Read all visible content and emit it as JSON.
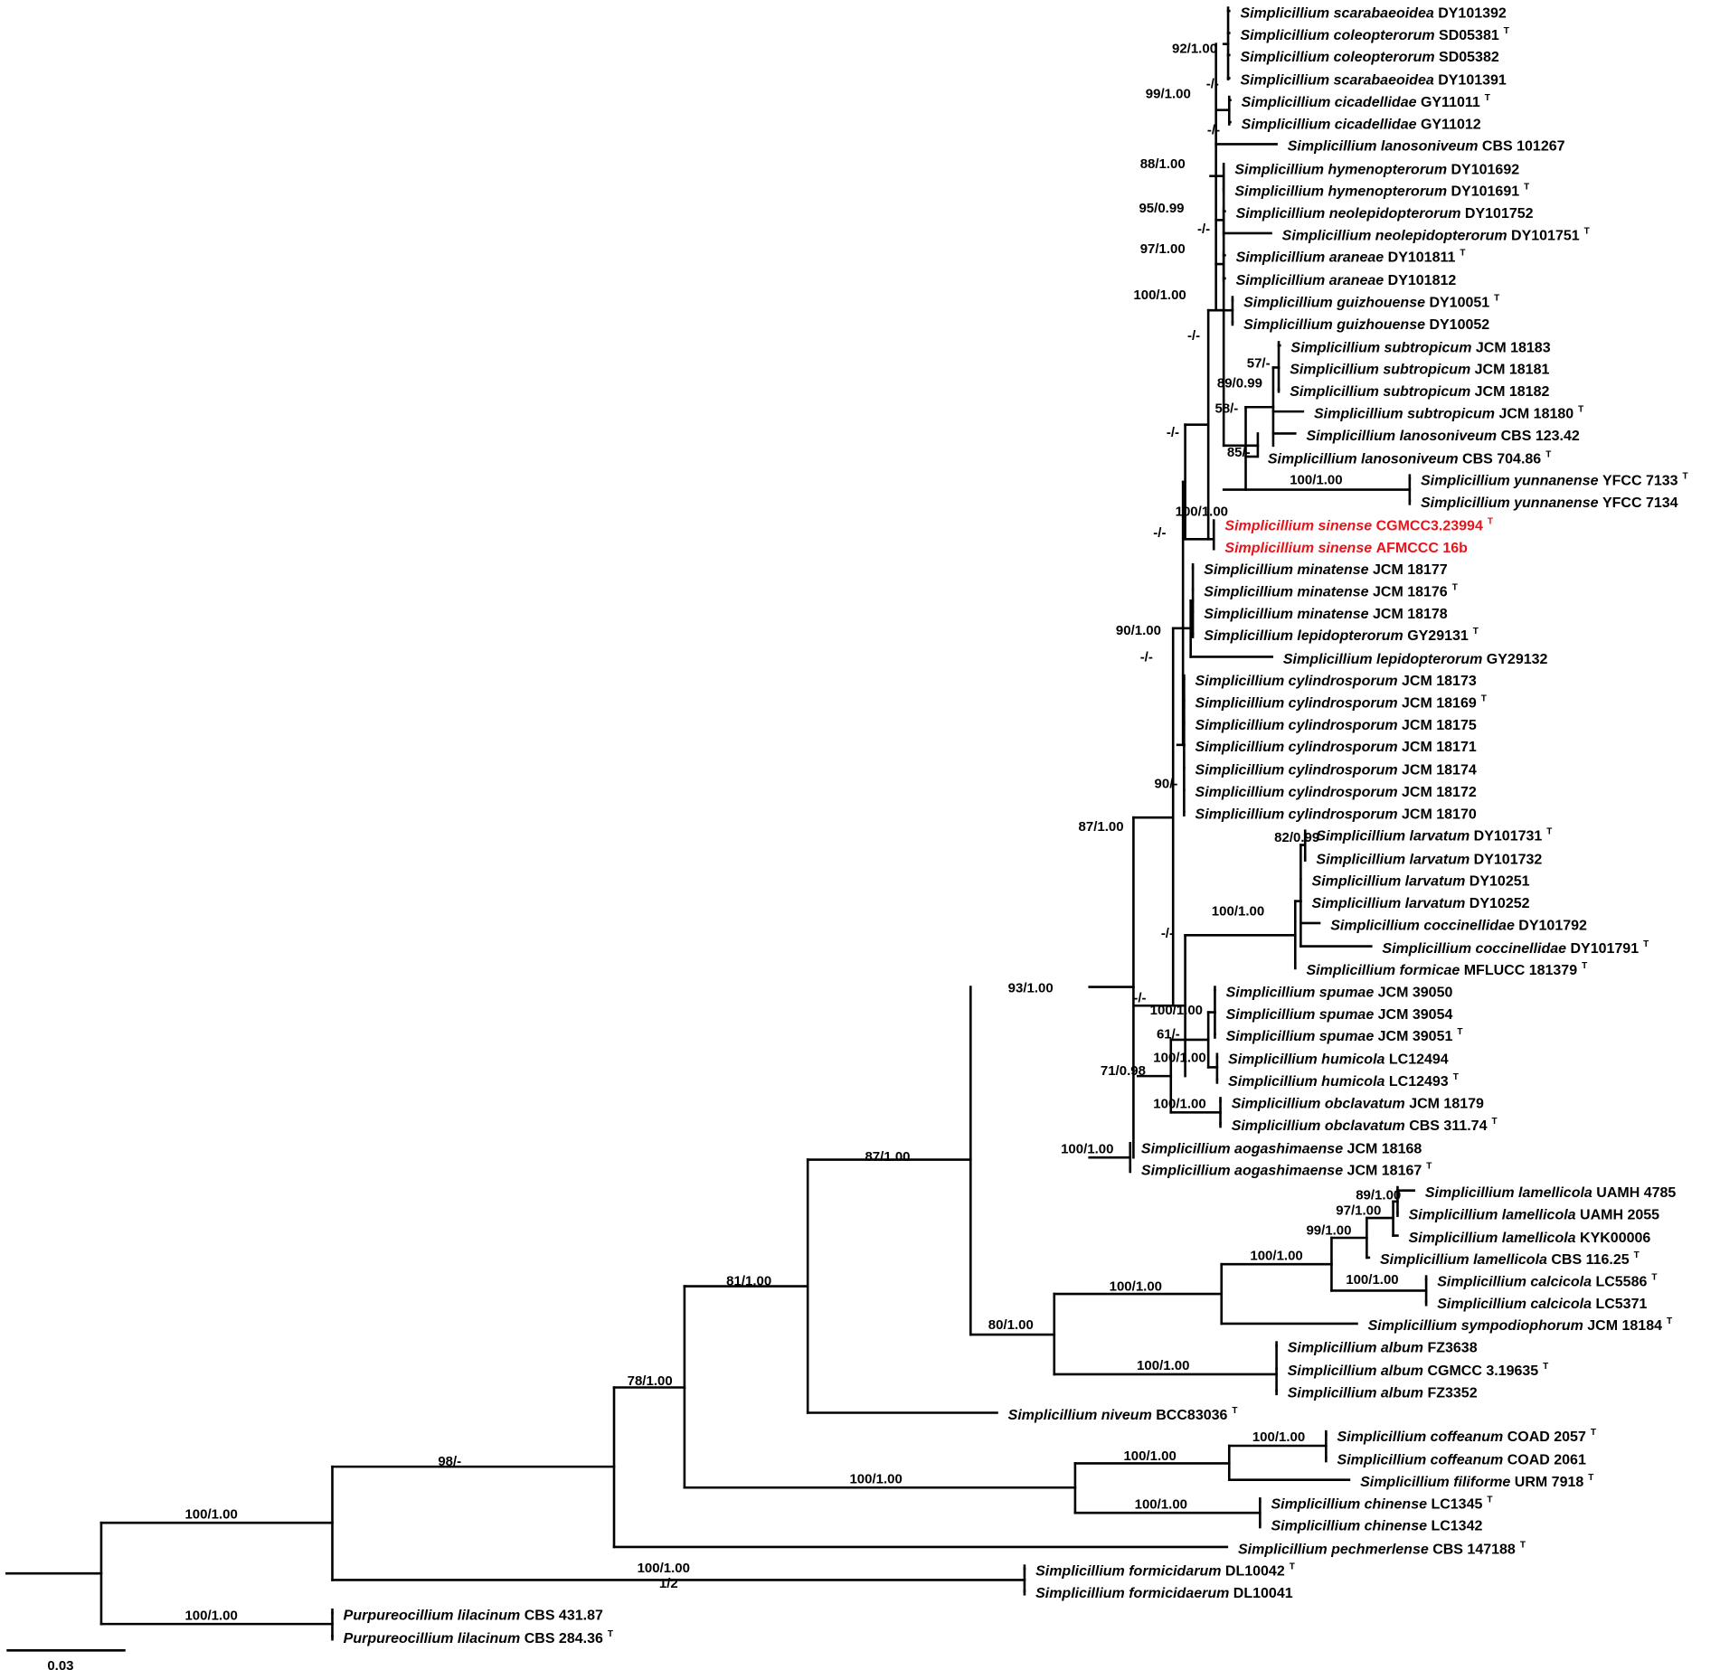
{
  "colors": {
    "branch": "#000000",
    "label": "#000000",
    "highlight": "#e8141c"
  },
  "scale_bar": {
    "label": "0.03"
  },
  "taxa": [
    {
      "id": "t0",
      "genus": "Simplicillium scarabaeoidea",
      "strain": "DY101392",
      "type": false,
      "highlight": false
    },
    {
      "id": "t1",
      "genus": "Simplicillium coleopterorum",
      "strain": "SD05381",
      "type": true,
      "highlight": false
    },
    {
      "id": "t2",
      "genus": "Simplicillium coleopterorum",
      "strain": "SD05382",
      "type": false,
      "highlight": false
    },
    {
      "id": "t3",
      "genus": "Simplicillium scarabaeoidea",
      "strain": "DY101391",
      "type": false,
      "highlight": false
    },
    {
      "id": "t4",
      "genus": "Simplicillium cicadellidae",
      "strain": "GY11011",
      "type": true,
      "highlight": false
    },
    {
      "id": "t5",
      "genus": "Simplicillium cicadellidae",
      "strain": "GY11012",
      "type": false,
      "highlight": false
    },
    {
      "id": "t6",
      "genus": "Simplicillium lanosoniveum",
      "strain": "CBS 101267",
      "type": false,
      "highlight": false
    },
    {
      "id": "t7",
      "genus": "Simplicillium hymenopterorum",
      "strain": "DY101692",
      "type": false,
      "highlight": false
    },
    {
      "id": "t8",
      "genus": "Simplicillium hymenopterorum",
      "strain": "DY101691",
      "type": true,
      "highlight": false
    },
    {
      "id": "t9",
      "genus": "Simplicillium neolepidopterorum",
      "strain": "DY101752",
      "type": false,
      "highlight": false
    },
    {
      "id": "t10",
      "genus": "Simplicillium neolepidopterorum",
      "strain": "DY101751",
      "type": true,
      "highlight": false
    },
    {
      "id": "t11",
      "genus": "Simplicillium araneae",
      "strain": "DY101811",
      "type": true,
      "highlight": false
    },
    {
      "id": "t12",
      "genus": "Simplicillium araneae",
      "strain": "DY101812",
      "type": false,
      "highlight": false
    },
    {
      "id": "t13",
      "genus": "Simplicillium guizhouense",
      "strain": "DY10051",
      "type": true,
      "highlight": false
    },
    {
      "id": "t14",
      "genus": "Simplicillium guizhouense",
      "strain": "DY10052",
      "type": false,
      "highlight": false
    },
    {
      "id": "t15",
      "genus": "Simplicillium subtropicum",
      "strain": "JCM 18183",
      "type": false,
      "highlight": false
    },
    {
      "id": "t16",
      "genus": "Simplicillium subtropicum",
      "strain": "JCM 18181",
      "type": false,
      "highlight": false
    },
    {
      "id": "t17",
      "genus": "Simplicillium subtropicum",
      "strain": "JCM 18182",
      "type": false,
      "highlight": false
    },
    {
      "id": "t18",
      "genus": "Simplicillium subtropicum",
      "strain": "JCM 18180",
      "type": true,
      "highlight": false
    },
    {
      "id": "t19",
      "genus": "Simplicillium lanosoniveum",
      "strain": "CBS 123.42",
      "type": false,
      "highlight": false
    },
    {
      "id": "t20",
      "genus": "Simplicillium lanosoniveum",
      "strain": "CBS 704.86",
      "type": true,
      "highlight": false
    },
    {
      "id": "t21",
      "genus": "Simplicillium yunnanense",
      "strain": "YFCC 7133",
      "type": true,
      "highlight": false
    },
    {
      "id": "t22",
      "genus": "Simplicillium yunnanense",
      "strain": "YFCC 7134",
      "type": false,
      "highlight": false
    },
    {
      "id": "t23",
      "genus": "Simplicillium sinense",
      "strain": "CGMCC3.23994",
      "type": true,
      "highlight": true
    },
    {
      "id": "t24",
      "genus": "Simplicillium sinense",
      "strain": "AFMCCC 16b",
      "type": false,
      "highlight": true
    },
    {
      "id": "t25",
      "genus": "Simplicillium minatense",
      "strain": "JCM 18177",
      "type": false,
      "highlight": false
    },
    {
      "id": "t26",
      "genus": "Simplicillium minatense",
      "strain": "JCM 18176",
      "type": true,
      "highlight": false
    },
    {
      "id": "t27",
      "genus": "Simplicillium minatense",
      "strain": "JCM 18178",
      "type": false,
      "highlight": false
    },
    {
      "id": "t28",
      "genus": "Simplicillium lepidopterorum",
      "strain": "GY29131",
      "type": true,
      "highlight": false
    },
    {
      "id": "t29",
      "genus": "Simplicillium lepidopterorum",
      "strain": "GY29132",
      "type": false,
      "highlight": false
    },
    {
      "id": "t30",
      "genus": "Simplicillium cylindrosporum",
      "strain": "JCM 18173",
      "type": false,
      "highlight": false
    },
    {
      "id": "t31",
      "genus": "Simplicillium cylindrosporum",
      "strain": "JCM 18169",
      "type": true,
      "highlight": false
    },
    {
      "id": "t32",
      "genus": "Simplicillium cylindrosporum",
      "strain": "JCM 18175",
      "type": false,
      "highlight": false
    },
    {
      "id": "t33",
      "genus": "Simplicillium cylindrosporum",
      "strain": "JCM 18171",
      "type": false,
      "highlight": false
    },
    {
      "id": "t34",
      "genus": "Simplicillium cylindrosporum",
      "strain": "JCM 18174",
      "type": false,
      "highlight": false
    },
    {
      "id": "t35",
      "genus": "Simplicillium cylindrosporum",
      "strain": "JCM 18172",
      "type": false,
      "highlight": false
    },
    {
      "id": "t36",
      "genus": "Simplicillium cylindrosporum",
      "strain": "JCM 18170",
      "type": false,
      "highlight": false
    },
    {
      "id": "t37",
      "genus": "Simplicillium larvatum",
      "strain": "DY101731",
      "type": true,
      "highlight": false
    },
    {
      "id": "t38",
      "genus": "Simplicillium larvatum",
      "strain": "DY101732",
      "type": false,
      "highlight": false
    },
    {
      "id": "t39",
      "genus": "Simplicillium larvatum",
      "strain": "DY10251",
      "type": false,
      "highlight": false
    },
    {
      "id": "t40",
      "genus": "Simplicillium larvatum",
      "strain": "DY10252",
      "type": false,
      "highlight": false
    },
    {
      "id": "t41",
      "genus": "Simplicillium coccinellidae",
      "strain": "DY101792",
      "type": false,
      "highlight": false
    },
    {
      "id": "t42",
      "genus": "Simplicillium coccinellidae",
      "strain": "DY101791",
      "type": true,
      "highlight": false
    },
    {
      "id": "t43",
      "genus": "Simplicillium formicae",
      "strain": "MFLUCC 181379",
      "type": true,
      "highlight": false
    },
    {
      "id": "t44",
      "genus": "Simplicillium spumae",
      "strain": "JCM 39050",
      "type": false,
      "highlight": false
    },
    {
      "id": "t45",
      "genus": "Simplicillium spumae",
      "strain": "JCM 39054",
      "type": false,
      "highlight": false
    },
    {
      "id": "t46",
      "genus": "Simplicillium spumae",
      "strain": "JCM 39051",
      "type": true,
      "highlight": false
    },
    {
      "id": "t47",
      "genus": "Simplicillium humicola",
      "strain": "LC12494",
      "type": false,
      "highlight": false
    },
    {
      "id": "t48",
      "genus": "Simplicillium humicola",
      "strain": "LC12493",
      "type": true,
      "highlight": false
    },
    {
      "id": "t49",
      "genus": "Simplicillium obclavatum",
      "strain": "JCM 18179",
      "type": false,
      "highlight": false
    },
    {
      "id": "t50",
      "genus": "Simplicillium obclavatum",
      "strain": "CBS 311.74",
      "type": true,
      "highlight": false
    },
    {
      "id": "t51",
      "genus": "Simplicillium aogashimaense",
      "strain": "JCM 18168",
      "type": false,
      "highlight": false
    },
    {
      "id": "t52",
      "genus": "Simplicillium aogashimaense",
      "strain": "JCM 18167",
      "type": true,
      "highlight": false
    },
    {
      "id": "t53",
      "genus": "Simplicillium lamellicola",
      "strain": "UAMH 4785",
      "type": false,
      "highlight": false
    },
    {
      "id": "t54",
      "genus": "Simplicillium lamellicola",
      "strain": "UAMH 2055",
      "type": false,
      "highlight": false
    },
    {
      "id": "t55",
      "genus": "Simplicillium lamellicola",
      "strain": "KYK00006",
      "type": false,
      "highlight": false
    },
    {
      "id": "t56",
      "genus": "Simplicillium lamellicola",
      "strain": "CBS 116.25",
      "type": true,
      "highlight": false
    },
    {
      "id": "t57",
      "genus": "Simplicillium calcicola",
      "strain": "LC5586",
      "type": true,
      "highlight": false
    },
    {
      "id": "t58",
      "genus": "Simplicillium calcicola",
      "strain": "LC5371",
      "type": false,
      "highlight": false
    },
    {
      "id": "t59",
      "genus": "Simplicillium sympodiophorum",
      "strain": "JCM 18184",
      "type": true,
      "highlight": false
    },
    {
      "id": "t60",
      "genus": "Simplicillium album",
      "strain": "FZ3638",
      "type": false,
      "highlight": false
    },
    {
      "id": "t61",
      "genus": "Simplicillium album",
      "strain": "CGMCC 3.19635",
      "type": true,
      "highlight": false
    },
    {
      "id": "t62",
      "genus": "Simplicillium album",
      "strain": "FZ3352",
      "type": false,
      "highlight": false
    },
    {
      "id": "t63",
      "genus": "Simplicillium niveum",
      "strain": "BCC83036",
      "type": true,
      "highlight": false
    },
    {
      "id": "t64",
      "genus": "Simplicillium coffeanum",
      "strain": "COAD 2057",
      "type": true,
      "highlight": false
    },
    {
      "id": "t65",
      "genus": "Simplicillium coffeanum",
      "strain": "COAD 2061",
      "type": false,
      "highlight": false
    },
    {
      "id": "t66",
      "genus": "Simplicillium filiforme",
      "strain": "URM 7918",
      "type": true,
      "highlight": false
    },
    {
      "id": "t67",
      "genus": "Simplicillium chinense",
      "strain": "LC1345",
      "type": true,
      "highlight": false
    },
    {
      "id": "t68",
      "genus": "Simplicillium chinense",
      "strain": "LC1342",
      "type": false,
      "highlight": false
    },
    {
      "id": "t69",
      "genus": "Simplicillium pechmerlense",
      "strain": "CBS 147188",
      "type": true,
      "highlight": false
    },
    {
      "id": "t70",
      "genus": "Simplicillium formicidarum",
      "strain": "DL10042",
      "type": true,
      "highlight": false
    },
    {
      "id": "t71",
      "genus": "Simplicillium formicidaerum",
      "strain": "DL10041",
      "type": false,
      "highlight": false
    },
    {
      "id": "t72",
      "genus": "Purpureocillium lilacinum",
      "strain": "CBS 431.87",
      "type": false,
      "highlight": false
    },
    {
      "id": "t73",
      "genus": "Purpureocillium lilacinum",
      "strain": "CBS 284.36",
      "type": true,
      "highlight": false
    }
  ],
  "type_mark": "T",
  "support_values": [
    "92/1.00",
    "-/-",
    "99/1.00",
    "-/-",
    "88/1.00",
    "95/0.99",
    "-/-",
    "97/1.00",
    "100/1.00",
    "-/-",
    "57/-",
    "89/0.99",
    "58/-",
    "85/-",
    "100/1.00",
    "-/-",
    "100/1.00",
    "-/-",
    "90/1.00",
    "-/-",
    "90/-",
    "87/1.00",
    "82/0.99",
    "100/1.00",
    "-/-",
    "-/-",
    "100/1.00",
    "61/-",
    "100/1.00",
    "71/0.98",
    "100/1.00",
    "100/1.00",
    "93/1.00",
    "87/1.00",
    "89/1.00",
    "97/1.00",
    "99/1.00",
    "100/1.00",
    "100/1.00",
    "100/1.00",
    "80/1.00",
    "100/1.00",
    "81/1.00",
    "100/1.00",
    "100/1.00",
    "100/1.00",
    "100/1.00",
    "78/1.00",
    "98/-",
    "100/1.00",
    "1/2",
    "100/1.00",
    "100/1.00"
  ]
}
